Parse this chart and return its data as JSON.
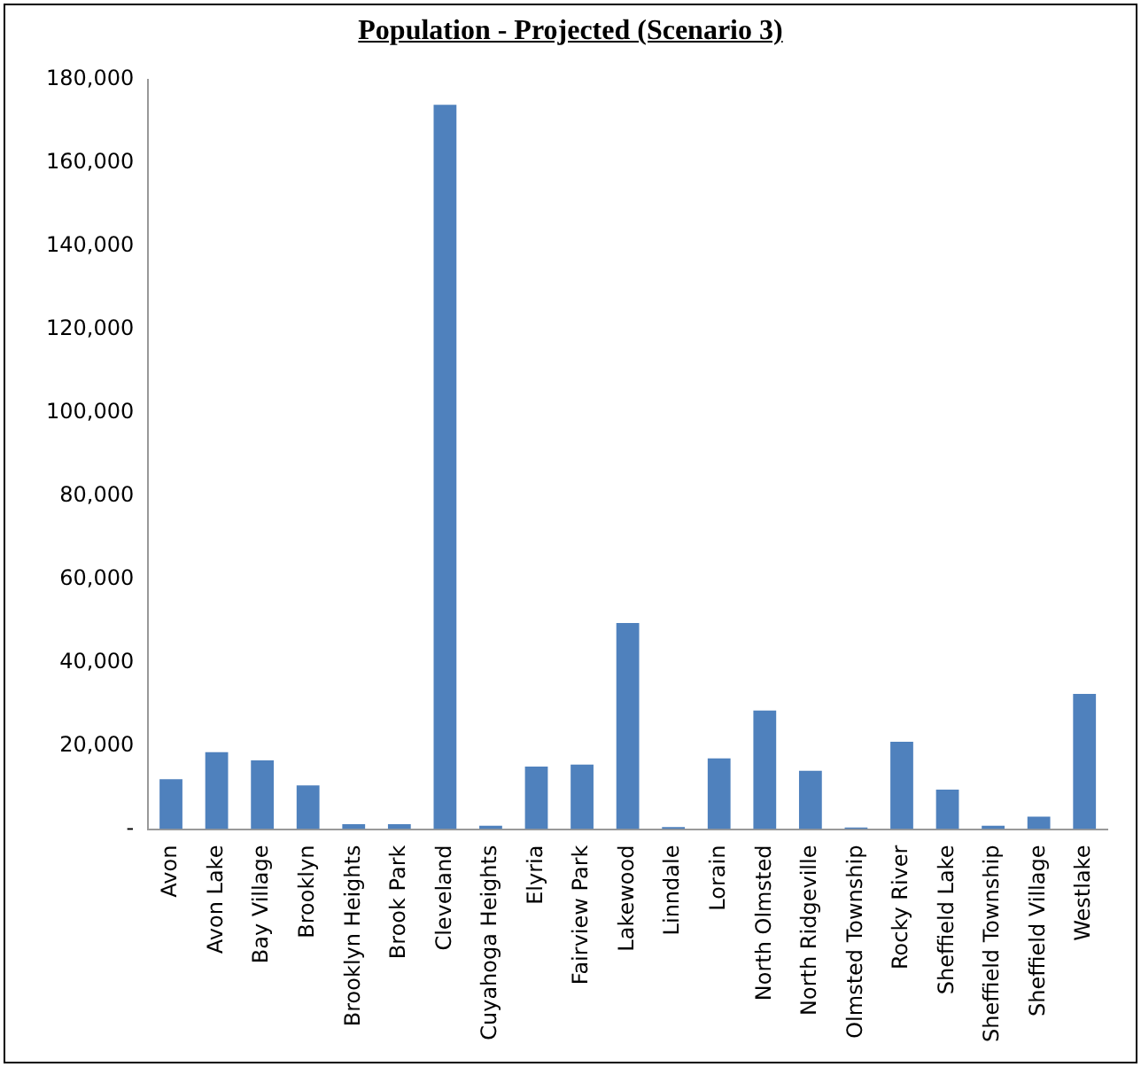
{
  "chart_data": {
    "type": "bar",
    "title": "Population - Projected (Scenario 3)",
    "categories": [
      "Avon",
      "Avon Lake",
      "Bay Village",
      "Brooklyn",
      "Brooklyn Heights",
      "Brook Park",
      "Cleveland",
      "Cuyahoga Heights",
      "Elyria",
      "Fairview Park",
      "Lakewood",
      "Linndale",
      "Lorain",
      "North Olmsted",
      "North Ridgeville",
      "Olmsted Township",
      "Rocky River",
      "Sheffield Lake",
      "Sheffield Township",
      "Sheffield Village",
      "Westlake"
    ],
    "values": [
      12000,
      18500,
      16500,
      10500,
      1200,
      1200,
      174000,
      800,
      15000,
      15500,
      49500,
      500,
      17000,
      28500,
      14000,
      400,
      21000,
      9500,
      800,
      3000,
      32500
    ],
    "color": "#4f81bd",
    "ylim": [
      0,
      180000
    ],
    "yticks": [
      {
        "value": 0,
        "label": "-"
      },
      {
        "value": 20000,
        "label": "20,000"
      },
      {
        "value": 40000,
        "label": "40,000"
      },
      {
        "value": 60000,
        "label": "60,000"
      },
      {
        "value": 80000,
        "label": "80,000"
      },
      {
        "value": 100000,
        "label": "100,000"
      },
      {
        "value": 120000,
        "label": "120,000"
      },
      {
        "value": 140000,
        "label": "140,000"
      },
      {
        "value": 160000,
        "label": "160,000"
      },
      {
        "value": 180000,
        "label": "180,000"
      }
    ],
    "grid": false,
    "legend": false
  }
}
